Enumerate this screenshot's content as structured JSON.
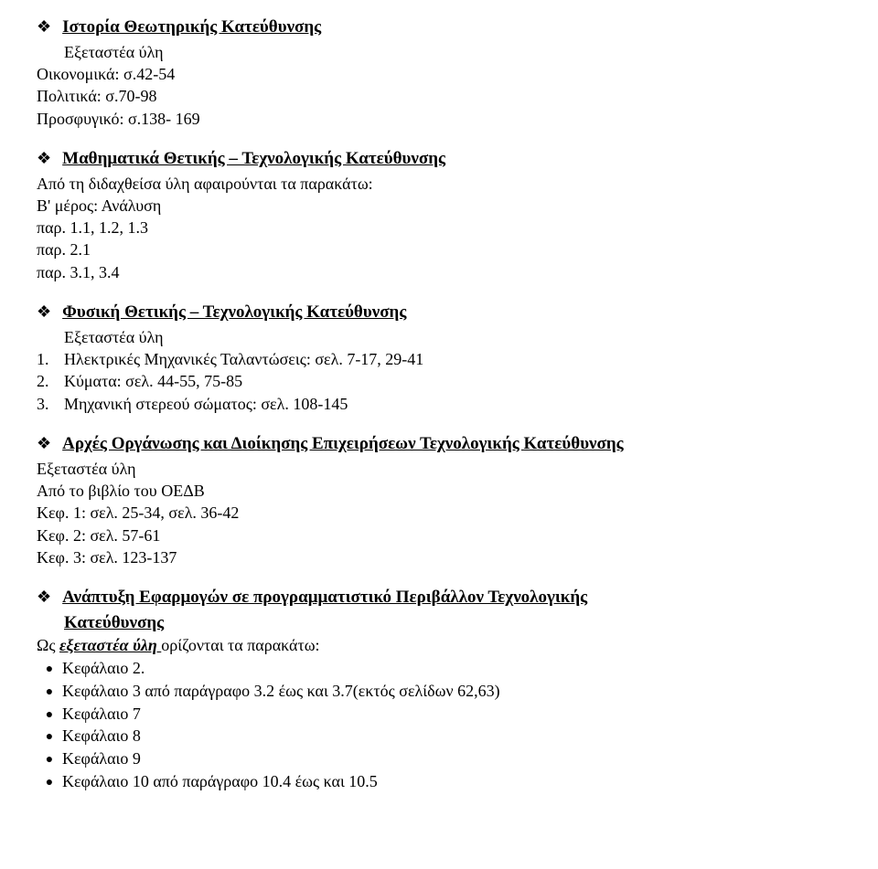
{
  "s1": {
    "title": "Ιστορία Θεωτηρικής Κατεύθυνσης",
    "lines": [
      "Εξεταστέα ύλη",
      "Οικονομικά: σ.42-54",
      "Πολιτικά: σ.70-98",
      "Προσφυγικό: σ.138- 169"
    ]
  },
  "s2": {
    "title": "Μαθηματικά Θετικής – Τεχνολογικής Κατεύθυνσης",
    "lines": [
      "Από τη διδαχθείσα ύλη αφαιρούνται τα παρακάτω:",
      "Β' μέρος: Ανάλυση",
      "παρ. 1.1, 1.2, 1.3",
      "παρ. 2.1",
      "παρ. 3.1, 3.4"
    ]
  },
  "s3": {
    "title": "Φυσική Θετικής – Τεχνολογικής Κατεύθυνσης",
    "sub": "Εξεταστέα ύλη",
    "items": [
      "Ηλεκτρικές Μηχανικές Ταλαντώσεις: σελ. 7-17, 29-41",
      "Κύματα: σελ. 44-55, 75-85",
      "Μηχανική στερεού σώματος: σελ. 108-145"
    ]
  },
  "s4": {
    "title": "Αρχές Οργάνωσης και Διοίκησης Επιχειρήσεων Τεχνολογικής Κατεύθυνσης",
    "lines": [
      "Εξεταστέα ύλη",
      "Από το βιβλίο του ΟΕΔΒ",
      "Κεφ. 1: σελ. 25-34, σελ. 36-42",
      "Κεφ. 2: σελ. 57-61",
      "Κεφ. 3: σελ. 123-137"
    ]
  },
  "s5": {
    "title_l1": "Ανάπτυξη Εφαρμογών σε προγραμματιστικό Περιβάλλον Τεχνολογικής",
    "title_l2": "Κατεύθυνσης",
    "intro_prefix": "Ως ",
    "intro_italic": "εξεταστέα ύλη ",
    "intro_rest": "ορίζονται τα παρακάτω:",
    "chapters": [
      "Κεφάλαιο 2.",
      "Κεφάλαιο 3 από παράγραφο 3.2 έως και 3.7(εκτός σελίδων 62,63)",
      "Κεφάλαιο 7",
      "Κεφάλαιο 8",
      "Κεφάλαιο 9",
      "Κεφάλαιο 10 από παράγραφο 10.4 έως και 10.5"
    ]
  }
}
